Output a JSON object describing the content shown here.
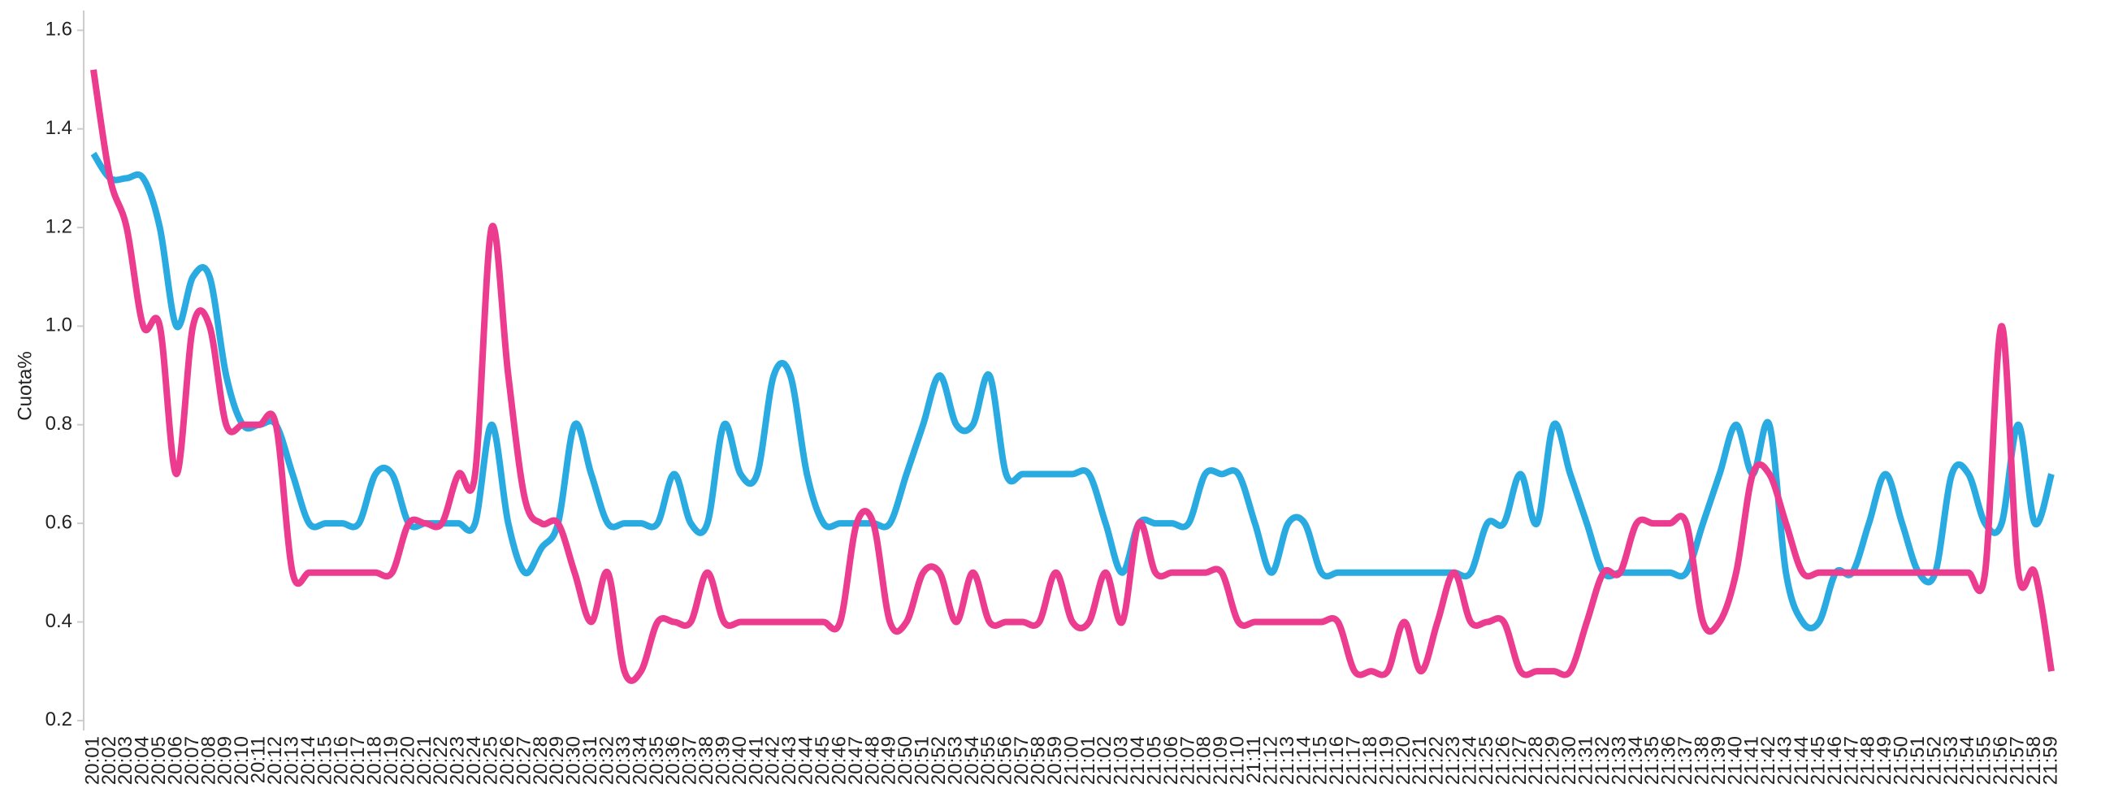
{
  "chart_data": {
    "type": "line",
    "y_label": "Cuota%",
    "categories": [
      "20:01",
      "20:02",
      "20:03",
      "20:04",
      "20:05",
      "20:06",
      "20:07",
      "20:08",
      "20:09",
      "20:10",
      "20:11",
      "20:12",
      "20:13",
      "20:14",
      "20:15",
      "20:16",
      "20:17",
      "20:18",
      "20:19",
      "20:20",
      "20:21",
      "20:22",
      "20:23",
      "20:24",
      "20:25",
      "20:26",
      "20:27",
      "20:28",
      "20:29",
      "20:30",
      "20:31",
      "20:32",
      "20:33",
      "20:34",
      "20:35",
      "20:36",
      "20:37",
      "20:38",
      "20:39",
      "20:40",
      "20:41",
      "20:42",
      "20:43",
      "20:44",
      "20:45",
      "20:46",
      "20:47",
      "20:48",
      "20:49",
      "20:50",
      "20:51",
      "20:52",
      "20:53",
      "20:54",
      "20:55",
      "20:56",
      "20:57",
      "20:58",
      "20:59",
      "21:00",
      "21:01",
      "21:02",
      "21:03",
      "21:04",
      "21:05",
      "21:06",
      "21:07",
      "21:08",
      "21:09",
      "21:10",
      "21:11",
      "21:12",
      "21:13",
      "21:14",
      "21:15",
      "21:16",
      "21:17",
      "21:18",
      "21:19",
      "21:20",
      "21:21",
      "21:22",
      "21:23",
      "21:24",
      "21:25",
      "21:26",
      "21:27",
      "21:28",
      "21:29",
      "21:30",
      "21:31",
      "21:32",
      "21:33",
      "21:34",
      "21:35",
      "21:36",
      "21:37",
      "21:38",
      "21:39",
      "21:40",
      "21:41",
      "21:42",
      "21:43",
      "21:44",
      "21:45",
      "21:46",
      "21:47",
      "21:48",
      "21:49",
      "21:50",
      "21:51",
      "21:52",
      "21:53",
      "21:54",
      "21:55",
      "21:56",
      "21:57",
      "21:58",
      "21:59"
    ],
    "series": [
      {
        "color": "#29abe2",
        "values": [
          1.35,
          1.3,
          1.3,
          1.3,
          1.2,
          1.0,
          1.1,
          1.1,
          0.9,
          0.8,
          0.8,
          0.8,
          0.7,
          0.6,
          0.6,
          0.6,
          0.6,
          0.7,
          0.7,
          0.6,
          0.6,
          0.6,
          0.6,
          0.6,
          0.8,
          0.6,
          0.5,
          0.55,
          0.6,
          0.8,
          0.7,
          0.6,
          0.6,
          0.6,
          0.6,
          0.7,
          0.6,
          0.6,
          0.8,
          0.7,
          0.7,
          0.9,
          0.9,
          0.7,
          0.6,
          0.6,
          0.6,
          0.6,
          0.6,
          0.7,
          0.8,
          0.9,
          0.8,
          0.8,
          0.9,
          0.7,
          0.7,
          0.7,
          0.7,
          0.7,
          0.7,
          0.6,
          0.5,
          0.6,
          0.6,
          0.6,
          0.6,
          0.7,
          0.7,
          0.7,
          0.6,
          0.5,
          0.6,
          0.6,
          0.5,
          0.5,
          0.5,
          0.5,
          0.5,
          0.5,
          0.5,
          0.5,
          0.5,
          0.5,
          0.6,
          0.6,
          0.7,
          0.6,
          0.8,
          0.7,
          0.6,
          0.5,
          0.5,
          0.5,
          0.5,
          0.5,
          0.5,
          0.6,
          0.7,
          0.8,
          0.7,
          0.8,
          0.5,
          0.4,
          0.4,
          0.5,
          0.5,
          0.6,
          0.7,
          0.6,
          0.5,
          0.5,
          0.7,
          0.7,
          0.6,
          0.6,
          0.8,
          0.6,
          0.7
        ]
      },
      {
        "color": "#ec3c8f",
        "values": [
          1.52,
          1.3,
          1.2,
          1.0,
          1.0,
          0.7,
          1.0,
          1.0,
          0.8,
          0.8,
          0.8,
          0.8,
          0.5,
          0.5,
          0.5,
          0.5,
          0.5,
          0.5,
          0.5,
          0.6,
          0.6,
          0.6,
          0.7,
          0.7,
          1.2,
          0.9,
          0.65,
          0.6,
          0.6,
          0.5,
          0.4,
          0.5,
          0.3,
          0.3,
          0.4,
          0.4,
          0.4,
          0.5,
          0.4,
          0.4,
          0.4,
          0.4,
          0.4,
          0.4,
          0.4,
          0.4,
          0.6,
          0.6,
          0.4,
          0.4,
          0.5,
          0.5,
          0.4,
          0.5,
          0.4,
          0.4,
          0.4,
          0.4,
          0.5,
          0.4,
          0.4,
          0.5,
          0.4,
          0.6,
          0.5,
          0.5,
          0.5,
          0.5,
          0.5,
          0.4,
          0.4,
          0.4,
          0.4,
          0.4,
          0.4,
          0.4,
          0.3,
          0.3,
          0.3,
          0.4,
          0.3,
          0.4,
          0.5,
          0.4,
          0.4,
          0.4,
          0.3,
          0.3,
          0.3,
          0.3,
          0.4,
          0.5,
          0.5,
          0.6,
          0.6,
          0.6,
          0.6,
          0.4,
          0.4,
          0.5,
          0.7,
          0.7,
          0.6,
          0.5,
          0.5,
          0.5,
          0.5,
          0.5,
          0.5,
          0.5,
          0.5,
          0.5,
          0.5,
          0.5,
          0.5,
          1.0,
          0.5,
          0.5,
          0.3
        ]
      }
    ],
    "ylim": [
      0.18,
      1.64
    ],
    "yticks": [
      {
        "value": 0.2,
        "label": "0.2"
      },
      {
        "value": 0.4,
        "label": "0.4"
      },
      {
        "value": 0.6,
        "label": "0.6"
      },
      {
        "value": 0.8,
        "label": "0.8"
      },
      {
        "value": 1.0,
        "label": "1.0"
      },
      {
        "value": 1.2,
        "label": "1.2"
      },
      {
        "value": 1.4,
        "label": "1.4"
      },
      {
        "value": 1.6,
        "label": "1.6"
      }
    ],
    "grid": false
  }
}
